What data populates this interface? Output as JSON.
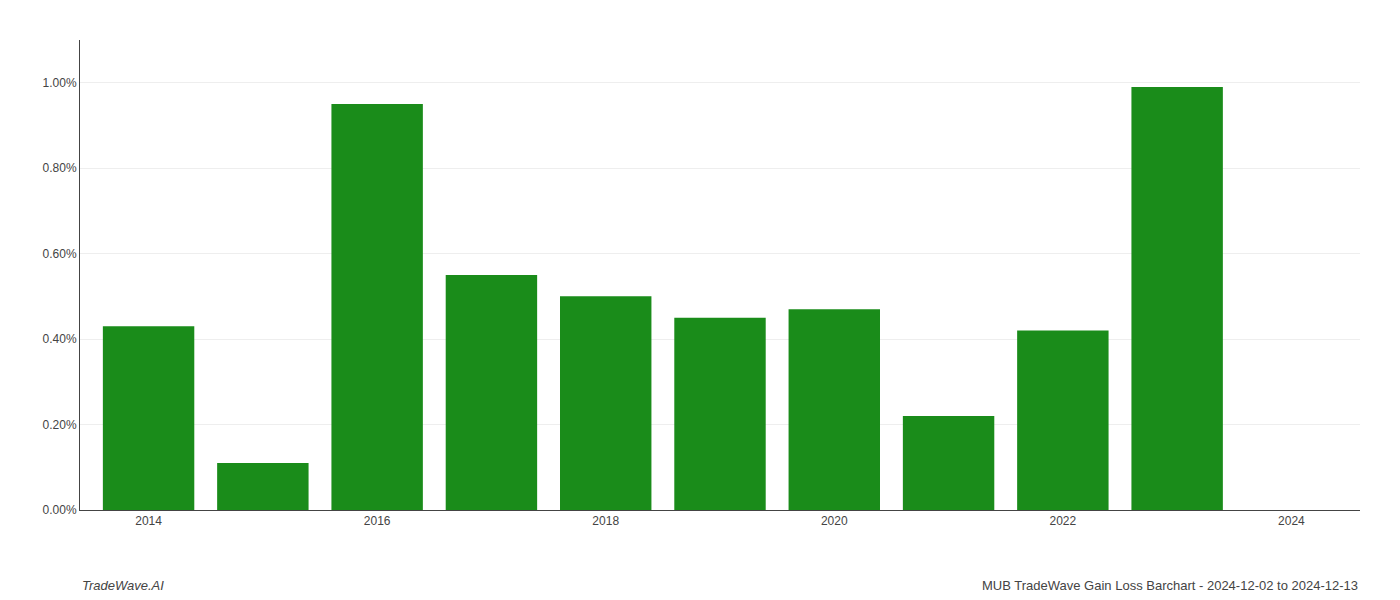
{
  "chart_data": {
    "type": "bar",
    "x": [
      2014,
      2015,
      2016,
      2017,
      2018,
      2019,
      2020,
      2021,
      2022,
      2023
    ],
    "values": [
      0.0043,
      0.0011,
      0.0095,
      0.0055,
      0.005,
      0.0045,
      0.0047,
      0.0022,
      0.0042,
      0.0099
    ],
    "color": "#1a8c1a",
    "xlim": [
      2013.4,
      2024.6
    ],
    "xticks": [
      2014,
      2016,
      2018,
      2020,
      2022,
      2024
    ],
    "ylim": [
      0,
      0.011
    ],
    "yticks": [
      {
        "value": 0.0,
        "label": "0.00%"
      },
      {
        "value": 0.002,
        "label": "0.20%"
      },
      {
        "value": 0.004,
        "label": "0.40%"
      },
      {
        "value": 0.006,
        "label": "0.60%"
      },
      {
        "value": 0.008,
        "label": "0.80%"
      },
      {
        "value": 0.01,
        "label": "1.00%"
      }
    ],
    "grid": true,
    "annotations": [
      "TradeWave.AI",
      "MUB TradeWave Gain Loss Barchart - 2024-12-02 to 2024-12-13"
    ]
  }
}
